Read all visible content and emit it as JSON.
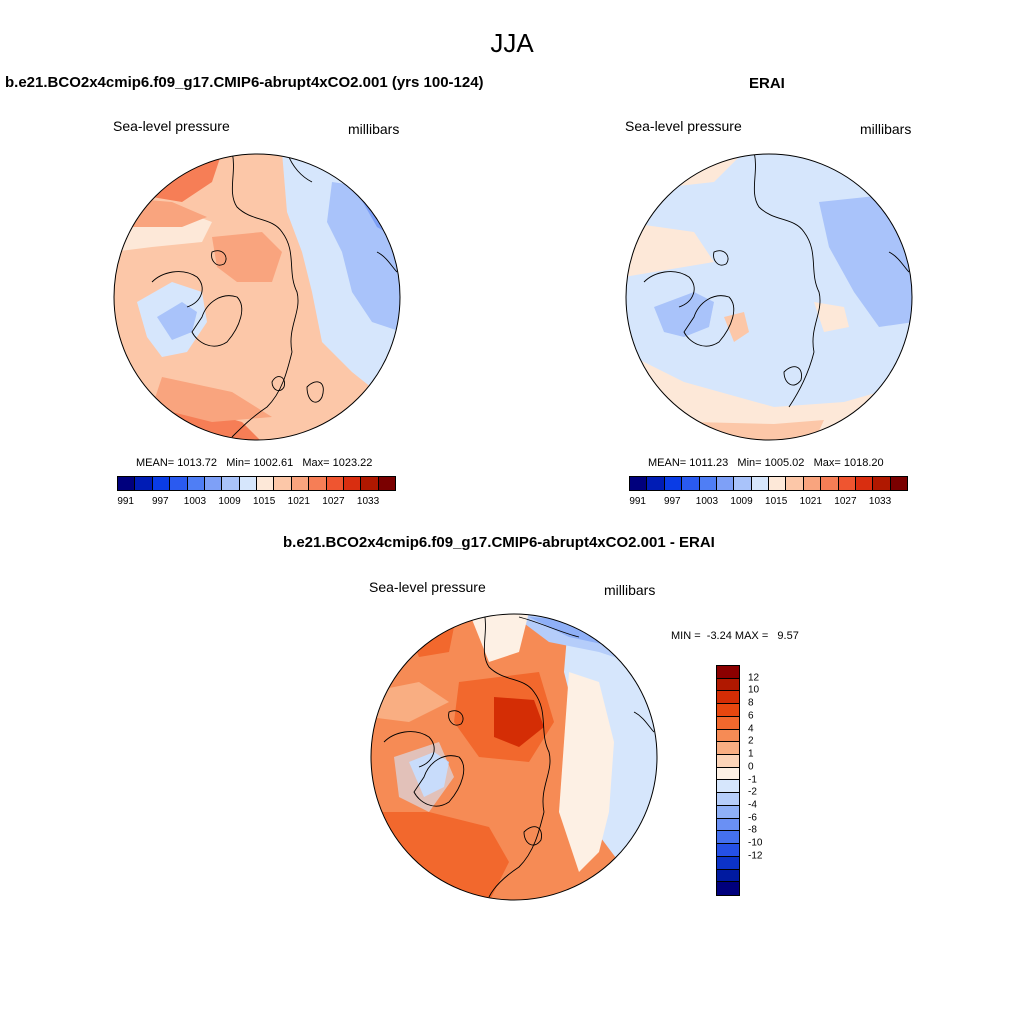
{
  "title": "JJA",
  "panels": [
    {
      "title": "b.e21.BCO2x4cmip6.f09_g17.CMIP6-abrupt4xCO2.001 (yrs 100-124)",
      "variable": "Sea-level pressure",
      "units": "millibars",
      "stats": {
        "mean_label": "MEAN=",
        "mean": "1013.72",
        "min_label": "Min=",
        "min": "1002.61",
        "max_label": "Max=",
        "max": "1023.22"
      }
    },
    {
      "title": "ERAI",
      "variable": "Sea-level pressure",
      "units": "millibars",
      "stats": {
        "mean_label": "MEAN=",
        "mean": "1011.23",
        "min_label": "Min=",
        "min": "1005.02",
        "max_label": "Max=",
        "max": "1018.20"
      }
    }
  ],
  "diff_panel": {
    "title": "b.e21.BCO2x4cmip6.f09_g17.CMIP6-abrupt4xCO2.001 - ERAI",
    "variable": "Sea-level pressure",
    "units": "millibars",
    "min_label": "MIN =",
    "min": "-3.24",
    "max_label": "MAX =",
    "max": "9.57"
  },
  "colorbar_abs": {
    "colors": [
      "#00007d",
      "#001cb5",
      "#0a3ce6",
      "#2a5af0",
      "#4f7ef5",
      "#7ea0f7",
      "#a9c3fa",
      "#d6e6fc",
      "#fde8d8",
      "#fcc7a8",
      "#f9a47e",
      "#f67e56",
      "#ef5530",
      "#d92e10",
      "#b01800",
      "#7a0000"
    ],
    "labels": [
      "991",
      "997",
      "1003",
      "1009",
      "1015",
      "1021",
      "1027",
      "1033"
    ]
  },
  "colorbar_diff": {
    "colors": [
      "#8b0000",
      "#b01800",
      "#d42d05",
      "#e8470f",
      "#f2682d",
      "#f68b55",
      "#f9ae82",
      "#fcd4b8",
      "#fdf0e4",
      "#d6e6fc",
      "#b5cdfa",
      "#8fb0f7",
      "#6a90f4",
      "#4470ef",
      "#2550e6",
      "#0c33c8",
      "#001aa0",
      "#00007d"
    ],
    "labels": [
      "12",
      "10",
      "8",
      "6",
      "4",
      "2",
      "1",
      "0",
      "-1",
      "-2",
      "-4",
      "-6",
      "-8",
      "-10",
      "-12"
    ]
  },
  "map_colors": {
    "panel1": {
      "base": "#fcc7a8",
      "warm": "#f9a47e",
      "hot": "#f67e56",
      "cool": "#d6e6fc",
      "cold": "#a9c3fa",
      "coldest": "#7ea0f7",
      "neutral": "#fde8d8"
    },
    "panel2": {
      "base": "#d6e6fc",
      "warm": "#fde8d8",
      "hot": "#fcc7a8",
      "cool": "#d6e6fc",
      "cold": "#a9c3fa",
      "coldest": "#a9c3fa",
      "neutral": "#fde8d8"
    },
    "panel3": {
      "base": "#f68b55",
      "warm": "#f2682d",
      "hot": "#d42d05",
      "cool": "#d6e6fc",
      "cold": "#b5cdfa",
      "coldest": "#8fb0f7",
      "neutral": "#fdf0e4"
    }
  }
}
